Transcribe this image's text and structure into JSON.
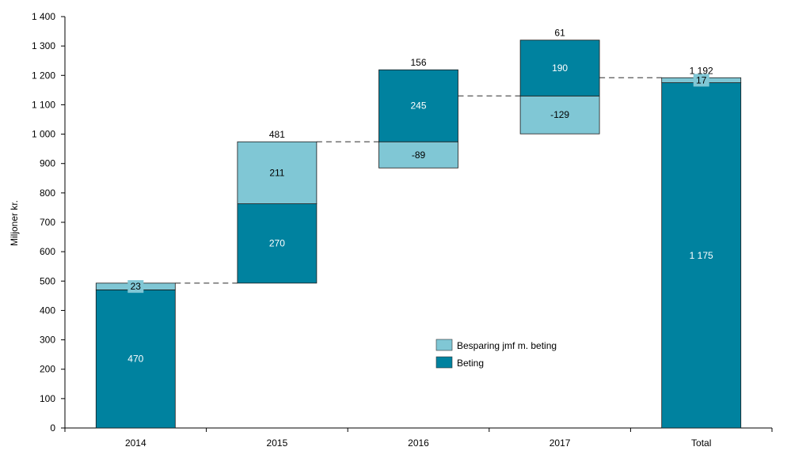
{
  "chart_data": {
    "type": "bar",
    "subtype": "waterfall-stacked",
    "title": "",
    "xlabel": "",
    "ylabel": "Miljoner kr.",
    "ylim": [
      0,
      1400
    ],
    "yticks": [
      0,
      100,
      200,
      300,
      400,
      500,
      600,
      700,
      800,
      900,
      "1 000",
      "1 100",
      "1 200",
      "1 300",
      "1 400"
    ],
    "categories": [
      "2014",
      "2015",
      "2016",
      "2017",
      "Total"
    ],
    "colors": {
      "Beting": "#00829F",
      "Besparing jmf m. beting": "#80C7D5"
    },
    "legend": {
      "position": "center-right",
      "entries": [
        {
          "name": "Besparing jmf m. beting",
          "color": "#80C7D5"
        },
        {
          "name": "Beting",
          "color": "#00829F"
        }
      ]
    },
    "bars": [
      {
        "category": "2014",
        "total_label": "",
        "segments": [
          {
            "series": "Beting",
            "from": 0,
            "to": 470,
            "label": "470"
          },
          {
            "series": "Besparing jmf m. beting",
            "from": 470,
            "to": 493,
            "label": "23"
          }
        ]
      },
      {
        "category": "2015",
        "total_label": "481",
        "segments": [
          {
            "series": "Beting",
            "from": 493,
            "to": 763,
            "label": "270"
          },
          {
            "series": "Besparing jmf m. beting",
            "from": 763,
            "to": 974,
            "label": "211"
          }
        ]
      },
      {
        "category": "2016",
        "total_label": "156",
        "segments": [
          {
            "series": "Besparing jmf m. beting",
            "from": 885,
            "to": 974,
            "label": "-89"
          },
          {
            "series": "Beting",
            "from": 974,
            "to": 1219,
            "label": "245"
          }
        ]
      },
      {
        "category": "2017",
        "total_label": "61",
        "segments": [
          {
            "series": "Besparing jmf m. beting",
            "from": 1001,
            "to": 1130,
            "label": "-129"
          },
          {
            "series": "Beting",
            "from": 1130,
            "to": 1320,
            "label": "190"
          }
        ]
      },
      {
        "category": "Total",
        "total_label": "1 192",
        "segments": [
          {
            "series": "Beting",
            "from": 0,
            "to": 1175,
            "label": "1 175"
          },
          {
            "series": "Besparing jmf m. beting",
            "from": 1175,
            "to": 1192,
            "label": "17"
          }
        ]
      }
    ],
    "connectors": [
      {
        "from_category": "2014",
        "to_category": "2015",
        "value": 493
      },
      {
        "from_category": "2015",
        "to_category": "2016",
        "value": 974
      },
      {
        "from_category": "2016",
        "to_category": "2017",
        "value": 1130
      },
      {
        "from_category": "2017",
        "to_category": "Total",
        "value": 1192
      }
    ],
    "grid": false
  }
}
